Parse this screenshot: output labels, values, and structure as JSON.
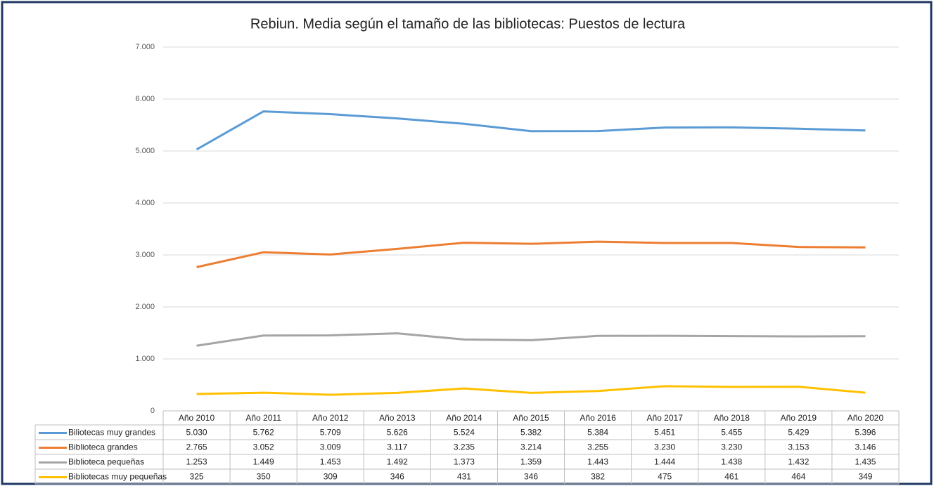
{
  "chart_data": {
    "type": "line",
    "title": "Rebiun. Media según el tamaño de las bibliotecas: Puestos de lectura",
    "categories": [
      "Año 2010",
      "Año 2011",
      "Año 2012",
      "Año 2013",
      "Año 2014",
      "Año 2015",
      "Año 2016",
      "Año 2017",
      "Año 2018",
      "Año 2019",
      "Año 2020"
    ],
    "series": [
      {
        "name": "Biliotecas muy grandes",
        "color": "#5b9bd5",
        "values": [
          5030,
          5762,
          5709,
          5626,
          5524,
          5382,
          5384,
          5451,
          5455,
          5429,
          5396
        ],
        "value_labels": [
          "5.030",
          "5.762",
          "5.709",
          "5.626",
          "5.524",
          "5.382",
          "5.384",
          "5.451",
          "5.455",
          "5.429",
          "5.396"
        ]
      },
      {
        "name": "Biblioteca grandes",
        "color": "#ed7d31",
        "values": [
          2765,
          3052,
          3009,
          3117,
          3235,
          3214,
          3255,
          3230,
          3230,
          3153,
          3146
        ],
        "value_labels": [
          "2.765",
          "3.052",
          "3.009",
          "3.117",
          "3.235",
          "3.214",
          "3.255",
          "3.230",
          "3.230",
          "3.153",
          "3.146"
        ]
      },
      {
        "name": "Biblioteca pequeñas",
        "color": "#a5a5a5",
        "values": [
          1253,
          1449,
          1453,
          1492,
          1373,
          1359,
          1443,
          1444,
          1438,
          1432,
          1435
        ],
        "value_labels": [
          "1.253",
          "1.449",
          "1.453",
          "1.492",
          "1.373",
          "1.359",
          "1.443",
          "1.444",
          "1.438",
          "1.432",
          "1.435"
        ]
      },
      {
        "name": "Bibliotecas muy pequeñas",
        "color": "#ffc000",
        "values": [
          325,
          350,
          309,
          346,
          431,
          346,
          382,
          475,
          461,
          464,
          349
        ]
      }
    ],
    "ylim": [
      0,
      7000
    ],
    "yticks": [
      0,
      {
        "value": 1000,
        "label": "1.000"
      },
      {
        "value": 2000,
        "label": "2.000"
      },
      {
        "value": 3000,
        "label": "3.000"
      },
      {
        "value": 4000,
        "label": "4.000"
      },
      {
        "value": 5000,
        "label": "5.000"
      },
      {
        "value": 6000,
        "label": "6.000"
      },
      {
        "value": 7000,
        "label": "7.000"
      }
    ],
    "grid": true
  }
}
